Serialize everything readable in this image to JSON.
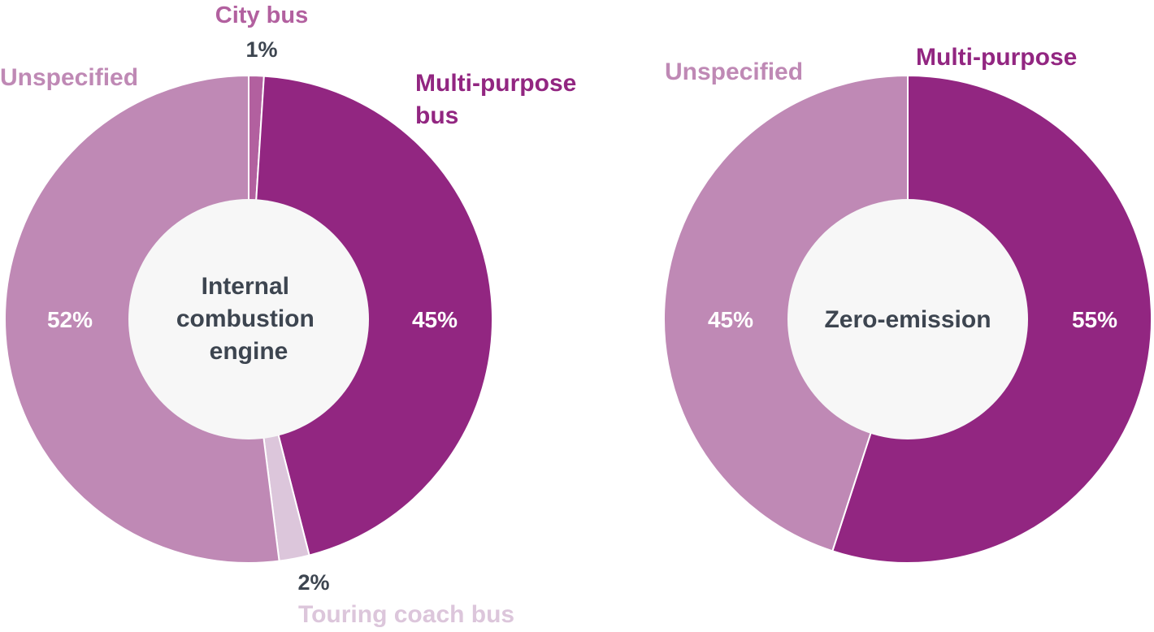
{
  "colors": {
    "multi_purpose": "#922681",
    "unspecified": "#bf89b5",
    "city_bus": "#b2609f",
    "touring_coach": "#dcc6db",
    "center_fill": "#f7f7f7",
    "dark_text": "#3d4550",
    "white_text": "#ffffff"
  },
  "chart_data": [
    {
      "type": "pie",
      "center_label": [
        "Internal",
        "combustion",
        "engine"
      ],
      "slices": [
        {
          "name": "City bus",
          "value": 1,
          "value_label": "1%",
          "color_key": "city_bus"
        },
        {
          "name": "Multi-purpose bus",
          "name_lines": [
            "Multi-purpose",
            "bus"
          ],
          "value": 45,
          "value_label": "45%",
          "color_key": "multi_purpose"
        },
        {
          "name": "Touring coach bus",
          "value": 2,
          "value_label": "2%",
          "color_key": "touring_coach"
        },
        {
          "name": "Unspecified",
          "value": 52,
          "value_label": "52%",
          "color_key": "unspecified"
        }
      ]
    },
    {
      "type": "pie",
      "center_label": [
        "Zero-emission"
      ],
      "slices": [
        {
          "name": "Multi-purpose",
          "value": 55,
          "value_label": "55%",
          "color_key": "multi_purpose"
        },
        {
          "name": "Unspecified",
          "value": 45,
          "value_label": "45%",
          "color_key": "unspecified"
        }
      ]
    }
  ]
}
